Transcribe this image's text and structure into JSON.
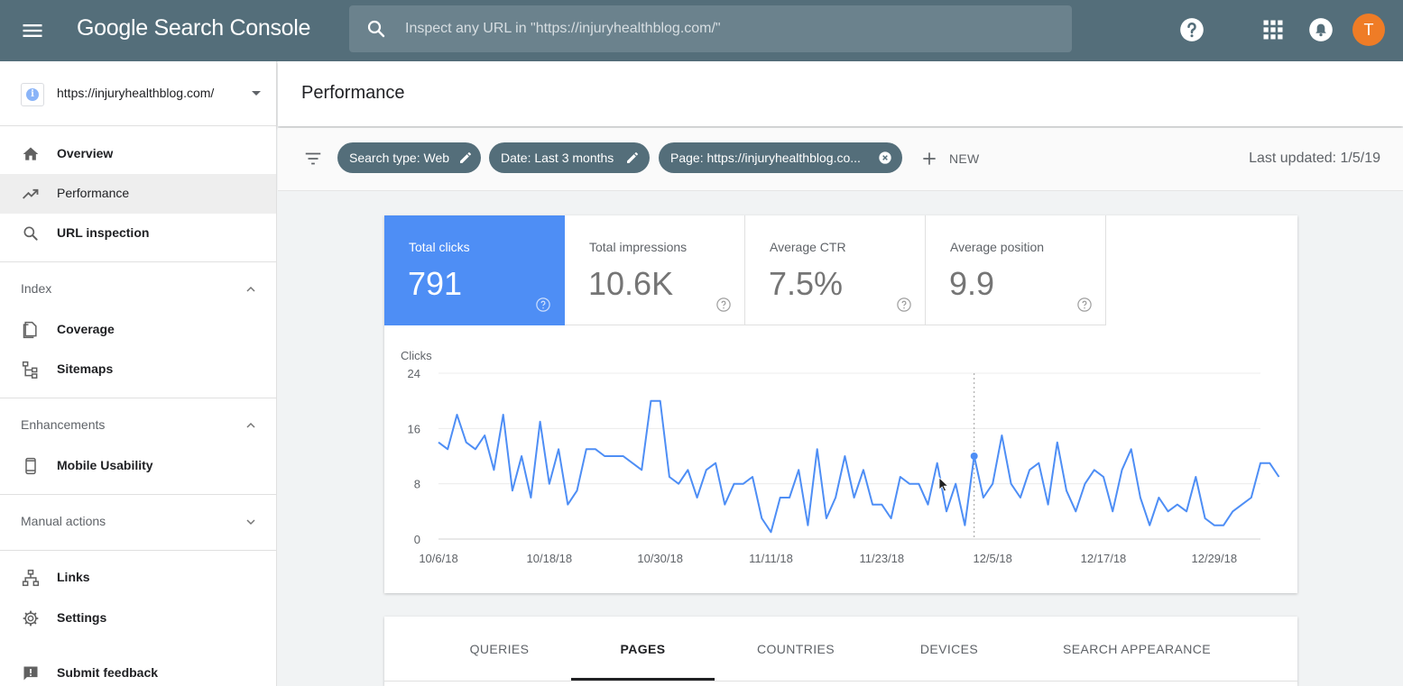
{
  "app": {
    "title": "Google Search Console",
    "search_placeholder": "Inspect any URL in \"https://injuryhealthblog.com/\"",
    "avatar_initial": "T",
    "topbar_color": "#546e7a",
    "accent": "#4e8ef5"
  },
  "sidebar": {
    "property": "https://injuryhealthblog.com/",
    "items_top": [
      {
        "label": "Overview",
        "icon": "home-icon"
      },
      {
        "label": "Performance",
        "icon": "trending-up-icon",
        "active": true
      },
      {
        "label": "URL inspection",
        "icon": "search-icon"
      }
    ],
    "index": {
      "header": "Index",
      "items": [
        {
          "label": "Coverage",
          "icon": "coverage-icon"
        },
        {
          "label": "Sitemaps",
          "icon": "sitemap-icon"
        }
      ]
    },
    "enhancements": {
      "header": "Enhancements",
      "items": [
        {
          "label": "Mobile Usability",
          "icon": "phone-icon"
        }
      ]
    },
    "manual_actions": {
      "header": "Manual actions"
    },
    "items_bottom": [
      {
        "label": "Links",
        "icon": "links-icon"
      },
      {
        "label": "Settings",
        "icon": "gear-icon"
      },
      {
        "label": "Submit feedback",
        "icon": "feedback-icon"
      }
    ]
  },
  "header": {
    "title": "Performance"
  },
  "filters": {
    "chips": [
      "Search type: Web",
      "Date: Last 3 months",
      "Page: https://injuryhealthblog.co..."
    ],
    "new_label": "NEW",
    "last_updated": "Last updated: 1/5/19"
  },
  "metrics": [
    {
      "label": "Total clicks",
      "value": "791",
      "selected": true
    },
    {
      "label": "Total impressions",
      "value": "10.6K",
      "selected": false
    },
    {
      "label": "Average CTR",
      "value": "7.5%",
      "selected": false
    },
    {
      "label": "Average position",
      "value": "9.9",
      "selected": false
    }
  ],
  "chart_data": {
    "type": "line",
    "ylabel": "Clicks",
    "ylim": [
      0,
      24
    ],
    "yticks": [
      0,
      8,
      16,
      24
    ],
    "x_start": "10/6/18",
    "x_end": "1/3/19",
    "xtick_labels": [
      "10/6/18",
      "10/18/18",
      "10/30/18",
      "11/11/18",
      "11/23/18",
      "12/5/18",
      "12/17/18",
      "12/29/18"
    ],
    "grid": true,
    "hover_date": "12/3/18",
    "series": [
      {
        "color": "#4e8ef5",
        "values": [
          14,
          13,
          18,
          14,
          13,
          15,
          10,
          18,
          7,
          12,
          6,
          17,
          8,
          13,
          5,
          7,
          13,
          13,
          12,
          12,
          12,
          11,
          10,
          20,
          20,
          9,
          8,
          10,
          6,
          10,
          11,
          5,
          8,
          8,
          9,
          3,
          1,
          6,
          6,
          10,
          2,
          13,
          3,
          6,
          12,
          6,
          10,
          5,
          5,
          3,
          9,
          8,
          8,
          5,
          11,
          4,
          8,
          2,
          12,
          6,
          8,
          15,
          8,
          6,
          10,
          11,
          5,
          14,
          7,
          4,
          8,
          10,
          9,
          4,
          10,
          13,
          6,
          2,
          6,
          4,
          5,
          4,
          9,
          3,
          2,
          2,
          4,
          5,
          6,
          11,
          11,
          9
        ]
      }
    ]
  },
  "tabs": [
    {
      "label": "QUERIES",
      "active": false
    },
    {
      "label": "PAGES",
      "active": true
    },
    {
      "label": "COUNTRIES",
      "active": false
    },
    {
      "label": "DEVICES",
      "active": false
    },
    {
      "label": "SEARCH APPEARANCE",
      "active": false
    }
  ]
}
